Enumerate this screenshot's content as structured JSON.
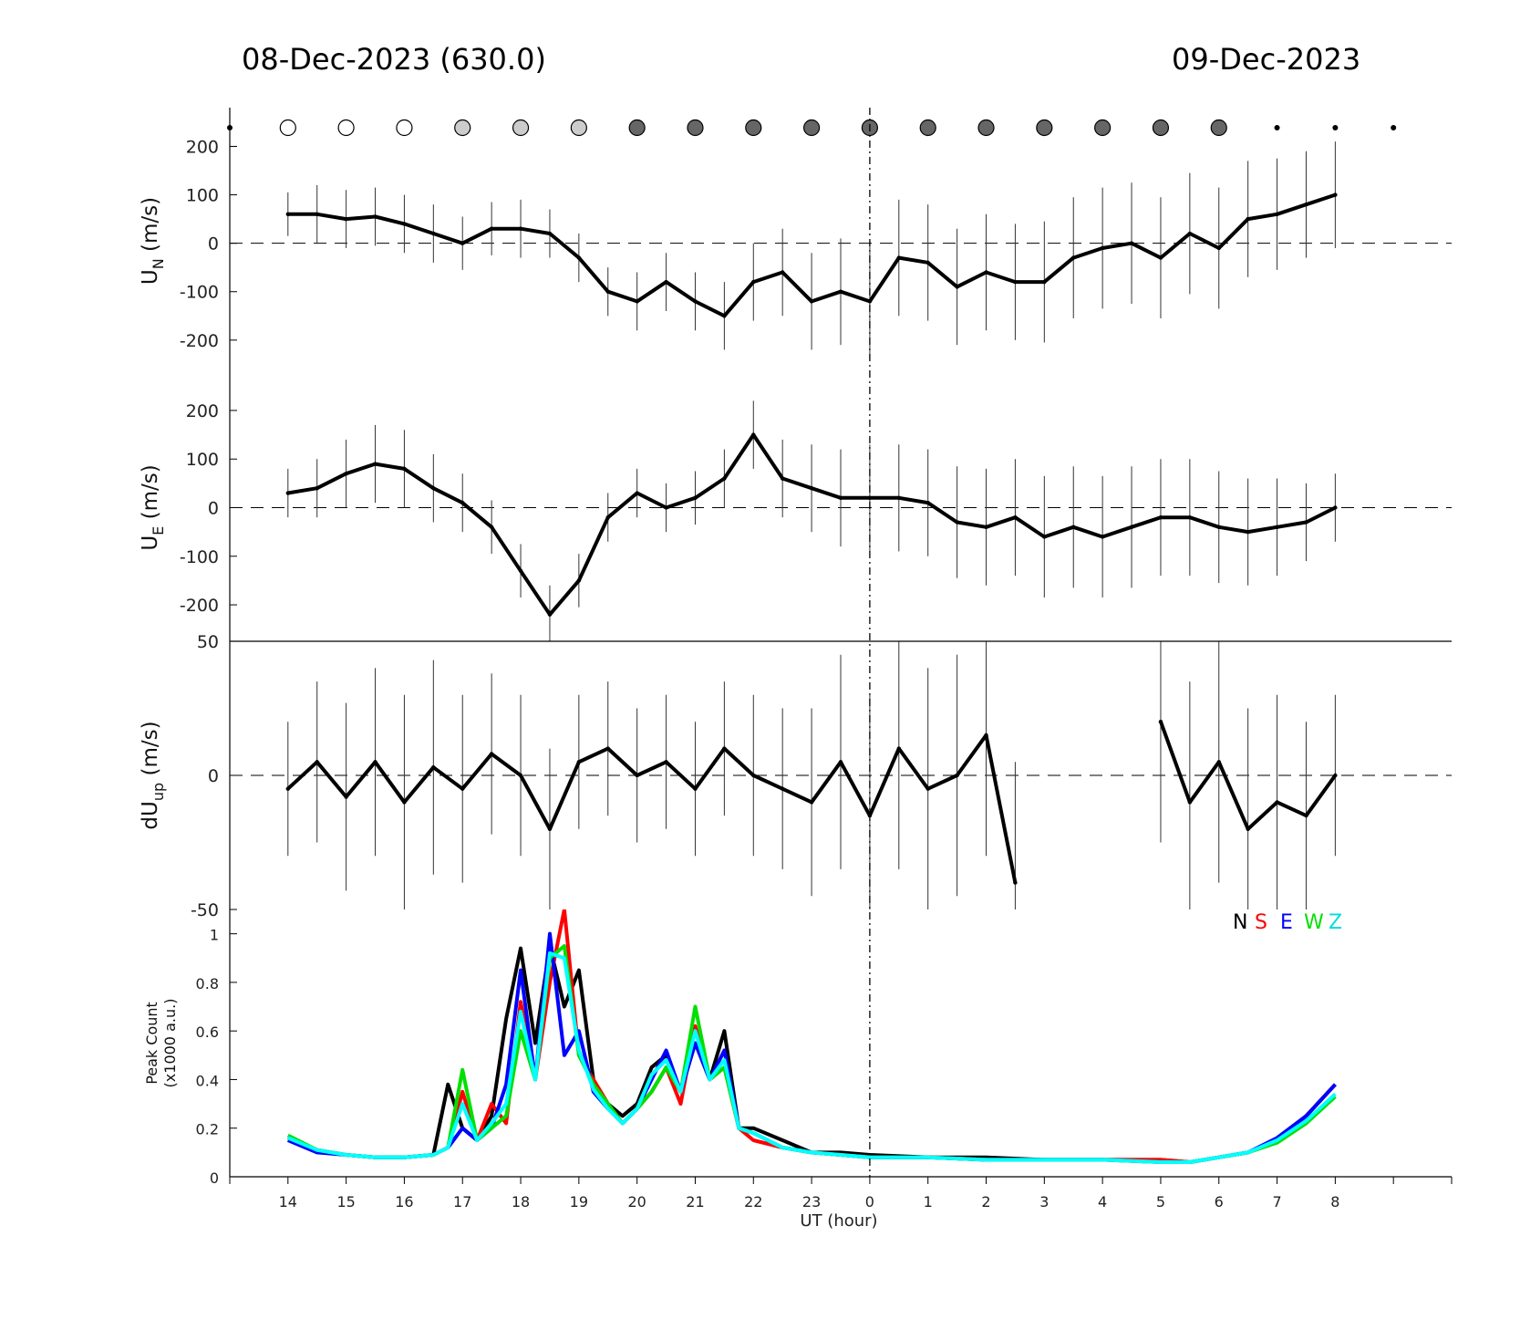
{
  "header": {
    "left_title": "08-Dec-2023 (630.0)",
    "right_title": "09-Dec-2023"
  },
  "x_axis": {
    "label": "UT (hour)",
    "tick_labels": [
      "14",
      "15",
      "16",
      "17",
      "18",
      "19",
      "20",
      "21",
      "22",
      "23",
      "0",
      "1",
      "2",
      "3",
      "4",
      "5",
      "6",
      "7",
      "8"
    ]
  },
  "moon_markers": [
    {
      "hour": 13.0,
      "kind": "dot"
    },
    {
      "hour": 14.0,
      "kind": "white"
    },
    {
      "hour": 15.0,
      "kind": "white"
    },
    {
      "hour": 16.0,
      "kind": "white"
    },
    {
      "hour": 17.0,
      "kind": "light"
    },
    {
      "hour": 18.0,
      "kind": "light"
    },
    {
      "hour": 19.0,
      "kind": "light"
    },
    {
      "hour": 20.0,
      "kind": "dark"
    },
    {
      "hour": 21.0,
      "kind": "dark"
    },
    {
      "hour": 22.0,
      "kind": "dark"
    },
    {
      "hour": 23.0,
      "kind": "dark"
    },
    {
      "hour": 24.0,
      "kind": "dark"
    },
    {
      "hour": 25.0,
      "kind": "dark"
    },
    {
      "hour": 26.0,
      "kind": "dark"
    },
    {
      "hour": 27.0,
      "kind": "dark"
    },
    {
      "hour": 28.0,
      "kind": "dark"
    },
    {
      "hour": 29.0,
      "kind": "dark"
    },
    {
      "hour": 30.0,
      "kind": "dark"
    },
    {
      "hour": 31.0,
      "kind": "dot"
    },
    {
      "hour": 32.0,
      "kind": "dot"
    },
    {
      "hour": 33.0,
      "kind": "dot"
    }
  ],
  "colors": {
    "N": "#000000",
    "S": "#ff0000",
    "E": "#0000ff",
    "W": "#00e000",
    "Z": "#00ffff",
    "marker_light": "#cccccc",
    "marker_dark": "#666666"
  },
  "chart_data": [
    {
      "type": "line",
      "panel": "un",
      "ylabel_main": "U",
      "ylabel_sub": "N",
      "ylabel_unit": " (m/s)",
      "ylim": [
        -270,
        280
      ],
      "yticks": [
        200,
        100,
        0,
        -100,
        -200
      ],
      "ytick_labels": [
        "200",
        "100",
        "0",
        "-100",
        "-200"
      ],
      "xlim": [
        13.0,
        34.0
      ],
      "x": [
        14.0,
        14.5,
        15.0,
        15.5,
        16.0,
        16.5,
        17.0,
        17.5,
        18.0,
        18.5,
        19.0,
        19.5,
        20.0,
        20.5,
        21.0,
        21.5,
        22.0,
        22.5,
        23.0,
        23.5,
        24.0,
        24.5,
        25.0,
        25.5,
        26.0,
        26.5,
        27.0,
        27.5,
        28.0,
        28.5,
        29.0,
        29.5,
        30.0,
        30.5,
        31.0,
        31.5,
        32.0
      ],
      "values": [
        60,
        60,
        50,
        55,
        40,
        20,
        0,
        30,
        30,
        20,
        -30,
        -100,
        -120,
        -80,
        -120,
        -150,
        -80,
        -60,
        -120,
        -100,
        -120,
        -30,
        -40,
        -90,
        -60,
        -80,
        -80,
        -30,
        -10,
        0,
        -30,
        20,
        -10,
        50,
        60,
        80,
        100
      ],
      "err": [
        45,
        60,
        60,
        60,
        60,
        60,
        55,
        55,
        60,
        50,
        50,
        50,
        60,
        60,
        60,
        70,
        80,
        90,
        100,
        110,
        120,
        120,
        120,
        120,
        120,
        120,
        125,
        125,
        125,
        125,
        125,
        125,
        125,
        120,
        115,
        110,
        110
      ]
    },
    {
      "type": "line",
      "panel": "ue",
      "ylabel_main": "U",
      "ylabel_sub": "E",
      "ylabel_unit": " (m/s)",
      "ylim": [
        -275,
        275
      ],
      "yticks": [
        200,
        100,
        0,
        -100,
        -200
      ],
      "ytick_labels": [
        "200",
        "100",
        "0",
        "-100",
        "-200"
      ],
      "xlim": [
        13.0,
        34.0
      ],
      "x": [
        14.0,
        14.5,
        15.0,
        15.5,
        16.0,
        16.5,
        17.0,
        17.5,
        18.0,
        18.5,
        19.0,
        19.5,
        20.0,
        20.5,
        21.0,
        21.5,
        22.0,
        22.5,
        23.0,
        23.5,
        24.0,
        24.5,
        25.0,
        25.5,
        26.0,
        26.5,
        27.0,
        27.5,
        28.0,
        28.5,
        29.0,
        29.5,
        30.0,
        30.5,
        31.0,
        31.5,
        32.0
      ],
      "values": [
        30,
        40,
        70,
        90,
        80,
        40,
        10,
        -40,
        -130,
        -220,
        -150,
        -20,
        30,
        0,
        20,
        60,
        150,
        60,
        40,
        20,
        20,
        20,
        10,
        -30,
        -40,
        -20,
        -60,
        -40,
        -60,
        -40,
        -20,
        -20,
        -40,
        -50,
        -40,
        -30,
        0
      ],
      "err": [
        50,
        60,
        70,
        80,
        80,
        70,
        60,
        55,
        55,
        60,
        55,
        50,
        50,
        50,
        55,
        60,
        70,
        80,
        90,
        100,
        110,
        110,
        110,
        115,
        120,
        120,
        125,
        125,
        125,
        125,
        120,
        120,
        115,
        110,
        100,
        80,
        70
      ]
    },
    {
      "type": "line",
      "panel": "dup",
      "ylabel_main": "dU",
      "ylabel_sub": "up",
      "ylabel_unit": " (m/s)",
      "ylim": [
        -50,
        50
      ],
      "yticks": [
        50,
        0,
        -50
      ],
      "ytick_labels": [
        "50",
        "0",
        "-50"
      ],
      "xlim": [
        13.0,
        34.0
      ],
      "x": [
        14.0,
        14.5,
        15.0,
        15.5,
        16.0,
        16.5,
        17.0,
        17.5,
        18.0,
        18.5,
        19.0,
        19.5,
        20.0,
        20.5,
        21.0,
        21.5,
        22.0,
        22.5,
        23.0,
        23.5,
        24.0,
        24.5,
        25.0,
        25.5,
        26.0,
        26.5,
        27.0,
        27.5,
        28.0,
        28.5,
        29.0,
        29.5,
        30.0,
        30.5,
        31.0,
        31.5,
        32.0
      ],
      "values": [
        -5,
        5,
        -8,
        5,
        -10,
        3,
        -5,
        8,
        0,
        -20,
        5,
        10,
        0,
        5,
        -5,
        10,
        0,
        -5,
        -10,
        5,
        -15,
        10,
        -5,
        0,
        15,
        -40,
        null,
        null,
        null,
        null,
        20,
        -10,
        5,
        -20,
        -10,
        -15,
        0
      ],
      "err": [
        25,
        30,
        35,
        35,
        40,
        40,
        35,
        30,
        30,
        30,
        25,
        25,
        25,
        25,
        25,
        25,
        30,
        30,
        35,
        40,
        45,
        45,
        45,
        45,
        45,
        45,
        0,
        0,
        0,
        0,
        45,
        45,
        45,
        45,
        40,
        35,
        30
      ]
    },
    {
      "type": "line",
      "panel": "counts",
      "ylabel_line1": "Peak Count",
      "ylabel_line2": "(x1000 a.u.)",
      "ylim": [
        0,
        1.1
      ],
      "yticks": [
        1,
        0.8,
        0.6,
        0.4,
        0.2,
        0
      ],
      "ytick_labels": [
        "1",
        "0.8",
        "0.6",
        "0.4",
        "0.2",
        "0"
      ],
      "xlim": [
        13.0,
        34.0
      ],
      "x": [
        14.0,
        14.5,
        15.0,
        15.5,
        16.0,
        16.5,
        16.75,
        17.0,
        17.25,
        17.5,
        17.75,
        18.0,
        18.25,
        18.5,
        18.75,
        19.0,
        19.25,
        19.5,
        19.75,
        20.0,
        20.25,
        20.5,
        20.75,
        21.0,
        21.25,
        21.5,
        21.75,
        22.0,
        22.5,
        23.0,
        23.5,
        24.0,
        25.0,
        26.0,
        27.0,
        28.0,
        29.0,
        29.5,
        30.0,
        30.5,
        31.0,
        31.5,
        32.0
      ],
      "series": [
        {
          "name": "N",
          "values": [
            0.16,
            0.11,
            0.09,
            0.08,
            0.08,
            0.09,
            0.38,
            0.2,
            0.15,
            0.25,
            0.65,
            0.94,
            0.55,
            0.95,
            0.7,
            0.85,
            0.4,
            0.3,
            0.25,
            0.3,
            0.45,
            0.5,
            0.35,
            0.55,
            0.4,
            0.6,
            0.2,
            0.2,
            0.15,
            0.1,
            0.1,
            0.09,
            0.08,
            0.08,
            0.07,
            0.07,
            0.07,
            0.06,
            0.08,
            0.1,
            0.15,
            0.25,
            0.38
          ]
        },
        {
          "name": "S",
          "values": [
            0.16,
            0.11,
            0.09,
            0.08,
            0.08,
            0.09,
            0.12,
            0.35,
            0.15,
            0.3,
            0.22,
            0.72,
            0.4,
            0.8,
            1.1,
            0.5,
            0.4,
            0.3,
            0.22,
            0.28,
            0.35,
            0.45,
            0.3,
            0.62,
            0.4,
            0.45,
            0.2,
            0.15,
            0.12,
            0.1,
            0.09,
            0.08,
            0.08,
            0.07,
            0.07,
            0.07,
            0.07,
            0.06,
            0.08,
            0.1,
            0.15,
            0.25,
            0.38
          ]
        },
        {
          "name": "E",
          "values": [
            0.15,
            0.1,
            0.09,
            0.08,
            0.08,
            0.09,
            0.12,
            0.2,
            0.15,
            0.2,
            0.38,
            0.85,
            0.4,
            1.0,
            0.5,
            0.6,
            0.35,
            0.28,
            0.22,
            0.28,
            0.4,
            0.52,
            0.35,
            0.55,
            0.4,
            0.52,
            0.2,
            0.18,
            0.12,
            0.1,
            0.09,
            0.08,
            0.08,
            0.07,
            0.07,
            0.07,
            0.06,
            0.06,
            0.08,
            0.1,
            0.16,
            0.25,
            0.38
          ]
        },
        {
          "name": "W",
          "values": [
            0.17,
            0.11,
            0.09,
            0.08,
            0.08,
            0.09,
            0.12,
            0.44,
            0.15,
            0.2,
            0.25,
            0.6,
            0.4,
            0.9,
            0.95,
            0.5,
            0.38,
            0.3,
            0.22,
            0.28,
            0.35,
            0.45,
            0.35,
            0.7,
            0.4,
            0.45,
            0.2,
            0.18,
            0.12,
            0.1,
            0.09,
            0.08,
            0.08,
            0.07,
            0.07,
            0.07,
            0.06,
            0.06,
            0.08,
            0.1,
            0.14,
            0.22,
            0.33
          ]
        },
        {
          "name": "Z",
          "values": [
            0.16,
            0.11,
            0.09,
            0.08,
            0.08,
            0.09,
            0.12,
            0.3,
            0.15,
            0.22,
            0.3,
            0.68,
            0.4,
            0.92,
            0.9,
            0.52,
            0.36,
            0.28,
            0.22,
            0.28,
            0.42,
            0.48,
            0.35,
            0.6,
            0.4,
            0.48,
            0.2,
            0.18,
            0.12,
            0.1,
            0.09,
            0.08,
            0.08,
            0.07,
            0.07,
            0.07,
            0.06,
            0.06,
            0.08,
            0.1,
            0.15,
            0.23,
            0.34
          ]
        }
      ]
    }
  ]
}
